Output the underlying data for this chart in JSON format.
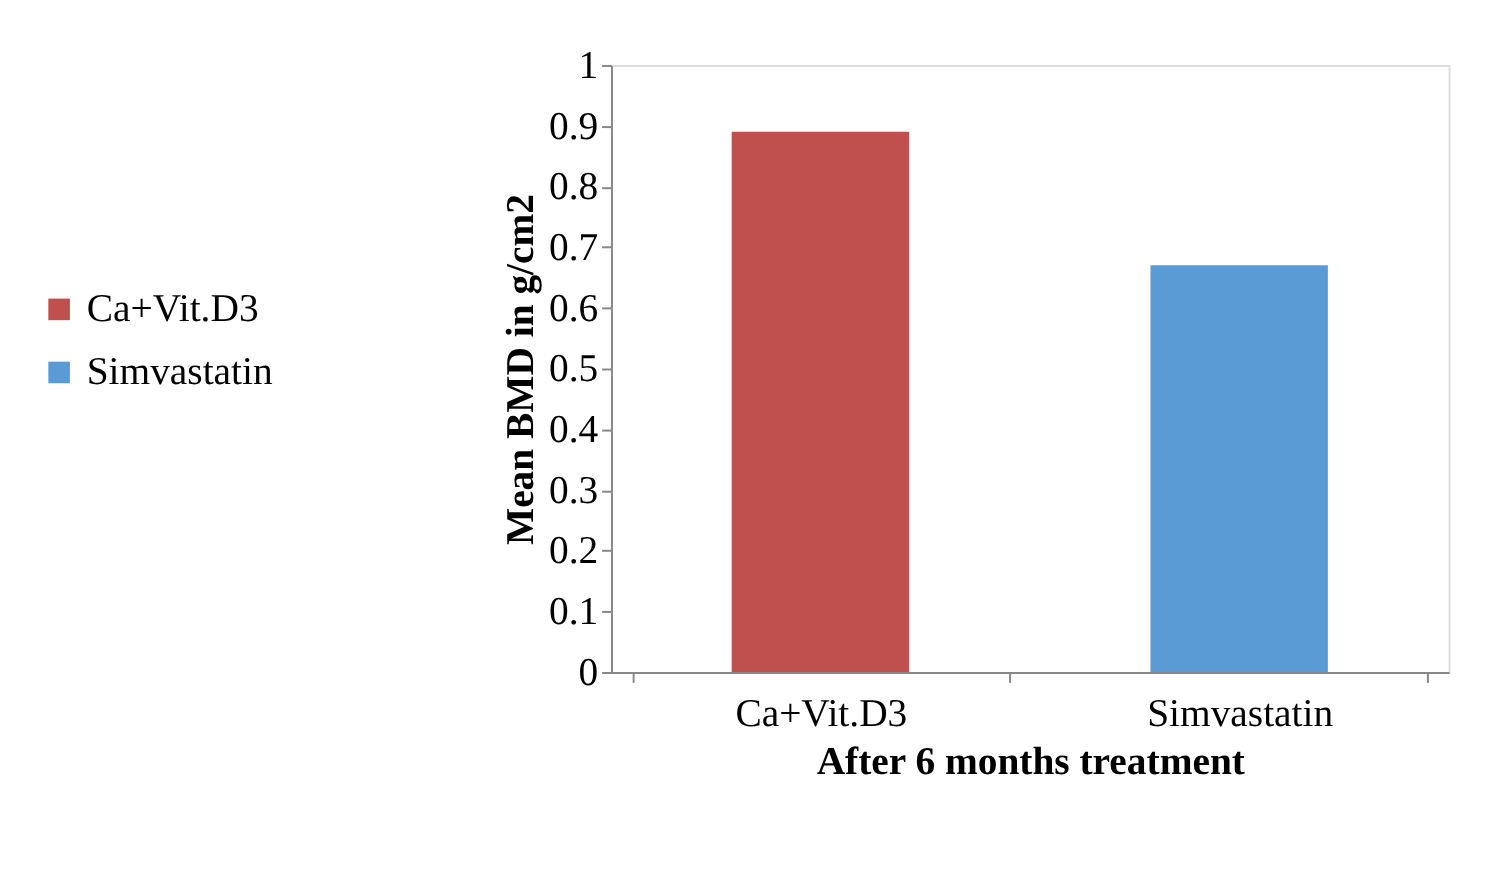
{
  "chart_data": {
    "type": "bar",
    "xlabel": "After 6 months treatment",
    "ylabel": "Mean BMD in g/cm2",
    "categories": [
      "Ca+Vit.D3",
      "Simvastatin"
    ],
    "series": [
      {
        "name": "Ca+Vit.D3",
        "color": "#c0504d",
        "values": [
          0.89,
          null
        ]
      },
      {
        "name": "Simvastatin",
        "color": "#5b9bd5",
        "values": [
          null,
          0.67
        ]
      }
    ],
    "ylim": [
      0,
      1
    ],
    "yticks": [
      {
        "value": 0,
        "label": "0"
      },
      0.1,
      0.2,
      0.3,
      0.4,
      0.5,
      0.6,
      0.7,
      0.8,
      0.9,
      {
        "value": 1,
        "label": "1"
      }
    ],
    "legend": "left",
    "grid": false
  }
}
